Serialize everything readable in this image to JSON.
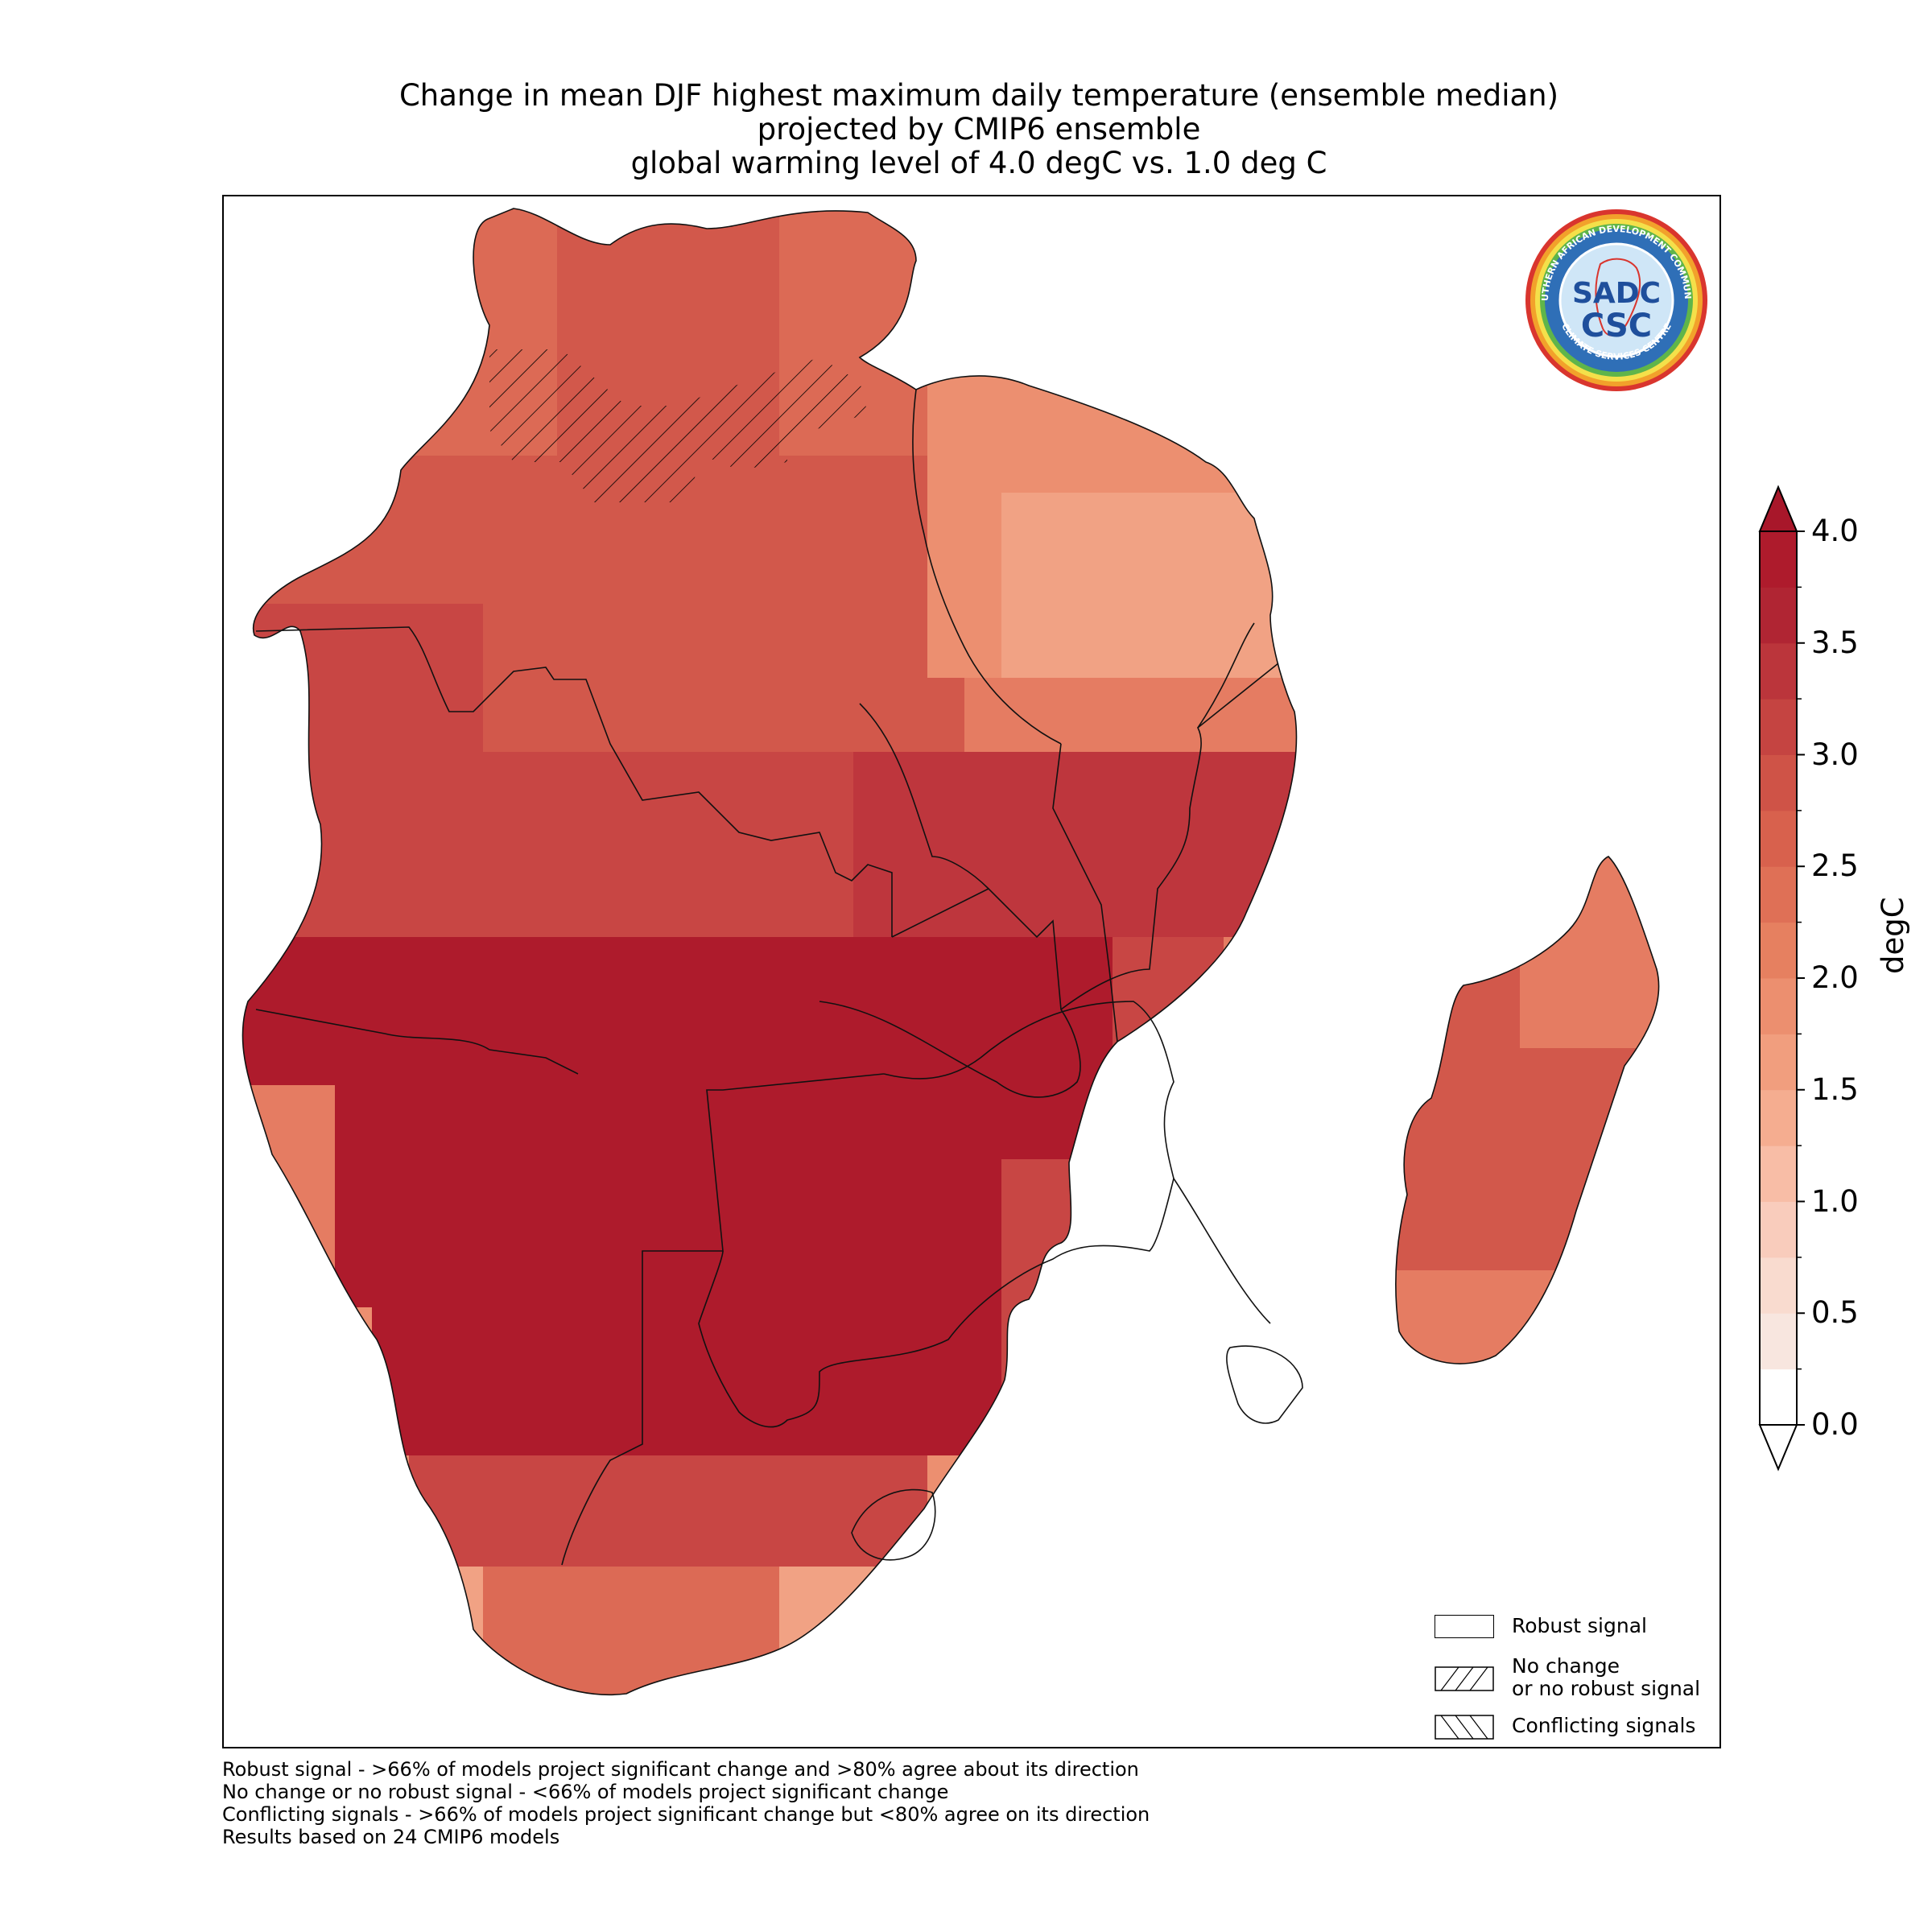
{
  "title": {
    "line1": "Change in mean DJF highest maximum daily temperature (ensemble median)",
    "line2": "projected by CMIP6 ensemble",
    "line3": "global warming level of 4.0 degC vs. 1.0 deg C"
  },
  "legend": {
    "robust": "Robust signal",
    "no_change_line1": "No change",
    "no_change_line2": "or no robust signal",
    "conflicting": "Conflicting signals"
  },
  "colorbar": {
    "units": "degC",
    "ticks": [
      "0.0",
      "0.5",
      "1.0",
      "1.5",
      "2.0",
      "2.5",
      "3.0",
      "3.5",
      "4.0"
    ],
    "range": [
      0.0,
      4.0
    ],
    "extend": "both",
    "colors": [
      "#ffffff",
      "#f8e4dd",
      "#f9d6c9",
      "#fac5b0",
      "#f7b293",
      "#f09f7d",
      "#e98a6b",
      "#e0765c",
      "#d4604f",
      "#c94a45",
      "#bc3439",
      "#ae1b2c"
    ]
  },
  "logo": {
    "ring_text": "SOUTHERN AFRICAN DEVELOPMENT COMMUNITY",
    "bottom_text": "CLIMATE SERVICES CENTRE",
    "center_top": "SADC",
    "center_bottom": "CSC"
  },
  "footnotes": [
    "Robust signal - >66% of models project significant change and >80% agree about its direction",
    "No change or no robust signal - <66% of models project significant change",
    "Conflicting signals - >66% of models project significant change but <80% agree on its direction",
    "Results based on 24 CMIP6 models"
  ]
}
